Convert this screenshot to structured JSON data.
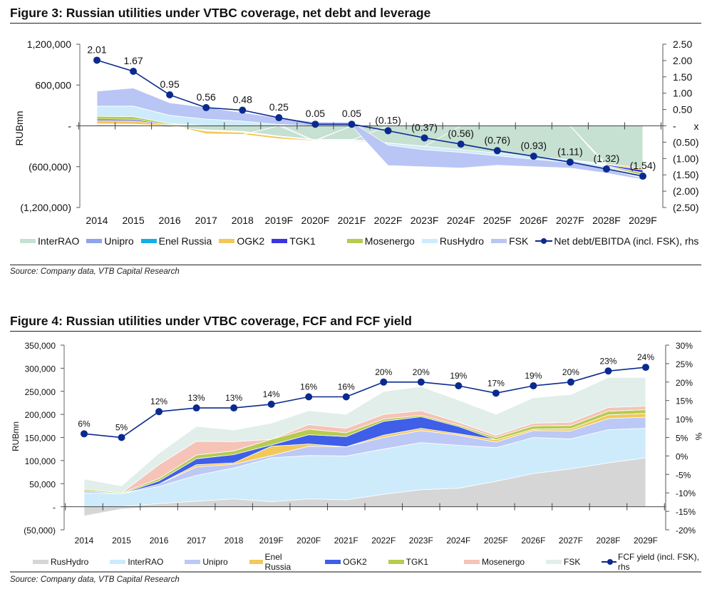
{
  "figures": [
    {
      "title": "Figure 3: Russian utilities under VTBC coverage, net debt and leverage",
      "source": "Source: Company data, VTB Capital Research"
    },
    {
      "title": "Figure 4: Russian utilities under VTBC coverage, FCF and FCF yield",
      "source": "Source: Company data, VTB Capital Research"
    }
  ],
  "chart_data": [
    {
      "type": "area",
      "stacked": true,
      "title": "Figure 3: Russian utilities under VTBC coverage, net debt and leverage",
      "xlabel": "",
      "ylabel": "RUBmn",
      "y2label": "x",
      "categories": [
        "2014",
        "2015",
        "2016",
        "2017",
        "2018",
        "2019F",
        "2020F",
        "2021F",
        "2022F",
        "2023F",
        "2024F",
        "2025F",
        "2026F",
        "2027F",
        "2028F",
        "2029F"
      ],
      "ylim": [
        -1200000,
        1200000
      ],
      "yticks": [
        1200000,
        600000,
        0,
        -600000,
        -1200000
      ],
      "ytick_labels": [
        "1,200,000",
        "600,000",
        "-",
        "(600,000)",
        "(1,200,000)"
      ],
      "y2lim": [
        -2.5,
        2.5
      ],
      "y2ticks": [
        2.5,
        2.0,
        1.5,
        1.0,
        0.5,
        0,
        -0.5,
        -1.0,
        -1.5,
        -2.0,
        -2.5
      ],
      "y2tick_labels": [
        "2.50",
        "2.00",
        "1.50",
        "1.00",
        "0.50",
        "-",
        "(0.50)",
        "(1.00)",
        "(1.50)",
        "(2.00)",
        "(2.50)"
      ],
      "grid": false,
      "legend_position": "bottom",
      "series": [
        {
          "name": "InterRAO",
          "color": "#c6e0d2",
          "values": [
            20000,
            15000,
            -20000,
            -60000,
            -80000,
            -150000,
            -200000,
            -200000,
            -250000,
            -300000,
            -350000,
            -400000,
            -450000,
            -500000,
            -560000,
            -620000
          ]
        },
        {
          "name": "Unipro",
          "color": "#8ea3ea",
          "values": [
            5000,
            5000,
            -5000,
            -8000,
            -8000,
            -5000,
            -5000,
            -5000,
            -3000,
            -2000,
            0,
            0,
            0,
            0,
            0,
            0
          ]
        },
        {
          "name": "Enel Russia",
          "color": "#10b0e8",
          "values": [
            5000,
            5000,
            -5000,
            -8000,
            -8000,
            -5000,
            -5000,
            -5000,
            0,
            0,
            0,
            0,
            0,
            0,
            0,
            0
          ]
        },
        {
          "name": "OGK2",
          "color": "#f2c85a",
          "values": [
            50000,
            50000,
            10000,
            -40000,
            -30000,
            -30000,
            -10000,
            0,
            0,
            0,
            0,
            0,
            0,
            0,
            -10000,
            -30000
          ]
        },
        {
          "name": "TGK1",
          "color": "#3a35e0",
          "values": [
            20000,
            20000,
            10000,
            -5000,
            -5000,
            0,
            0,
            0,
            0,
            0,
            0,
            0,
            0,
            0,
            -15000,
            -40000
          ]
        },
        {
          "name": "Mosenergo",
          "color": "#b5cc4f",
          "values": [
            40000,
            40000,
            15000,
            0,
            0,
            0,
            0,
            0,
            0,
            0,
            0,
            0,
            0,
            0,
            -10000,
            -40000
          ]
        },
        {
          "name": "RusHydro",
          "color": "#cdebfb",
          "values": [
            150000,
            155000,
            120000,
            100000,
            70000,
            20000,
            -10000,
            -10000,
            -30000,
            -50000,
            -40000,
            -40000,
            -40000,
            -40000,
            -40000,
            -40000
          ]
        },
        {
          "name": "FSK",
          "color": "#b9c5f4",
          "values": [
            220000,
            265000,
            185000,
            170000,
            125000,
            100000,
            60000,
            55000,
            -300000,
            -250000,
            -230000,
            -140000,
            -110000,
            -80000,
            -60000,
            -20000
          ]
        }
      ],
      "line_series": {
        "name": "Net debt/EBITDA (incl. FSK), rhs",
        "axis": "right",
        "color": "#0b2a8f",
        "values": [
          2.01,
          1.67,
          0.95,
          0.56,
          0.48,
          0.25,
          0.05,
          0.05,
          -0.15,
          -0.37,
          -0.56,
          -0.76,
          -0.93,
          -1.11,
          -1.32,
          -1.54
        ],
        "labels": [
          "2.01",
          "1.67",
          "0.95",
          "0.56",
          "0.48",
          "0.25",
          "0.05",
          "0.05",
          "(0.15)",
          "(0.37)",
          "(0.56)",
          "(0.76)",
          "(0.93)",
          "(1.11)",
          "(1.32)",
          "(1.54)"
        ]
      }
    },
    {
      "type": "area",
      "stacked": true,
      "title": "Figure 4: Russian utilities under VTBC coverage, FCF and FCF yield",
      "xlabel": "",
      "ylabel": "RUBmn",
      "y2label": "%",
      "categories": [
        "2014",
        "2015",
        "2016",
        "2017",
        "2018",
        "2019F",
        "2020F",
        "2021F",
        "2022F",
        "2023F",
        "2024F",
        "2025F",
        "2026F",
        "2027F",
        "2028F",
        "2029F"
      ],
      "ylim": [
        -50000,
        350000
      ],
      "yticks": [
        350000,
        300000,
        250000,
        200000,
        150000,
        100000,
        50000,
        0,
        -50000
      ],
      "ytick_labels": [
        "350,000",
        "300,000",
        "250,000",
        "200,000",
        "150,000",
        "100,000",
        "50,000",
        "-",
        "(50,000)"
      ],
      "y2lim": [
        -20,
        30
      ],
      "y2ticks": [
        30,
        25,
        20,
        15,
        10,
        5,
        0,
        -5,
        -10,
        -15,
        -20
      ],
      "y2tick_labels": [
        "30%",
        "25%",
        "20%",
        "15%",
        "10%",
        "5%",
        "0%",
        "-5%",
        "-10%",
        "-15%",
        "-20%"
      ],
      "grid": false,
      "legend_position": "bottom",
      "series": [
        {
          "name": "RusHydro",
          "color": "#d6d6d6",
          "values": [
            -20000,
            -5000,
            7000,
            12000,
            17000,
            11000,
            17000,
            15000,
            27000,
            37000,
            40000,
            55000,
            72000,
            82000,
            95000,
            106000
          ]
        },
        {
          "name": "InterRAO",
          "color": "#cdebfb",
          "values": [
            30000,
            28000,
            37000,
            56000,
            67000,
            95000,
            94000,
            95000,
            98000,
            102000,
            93000,
            73000,
            78000,
            65000,
            72000,
            64000
          ]
        },
        {
          "name": "Unipro",
          "color": "#bcc8f5",
          "values": [
            5000,
            0,
            5000,
            18000,
            8000,
            5000,
            20000,
            20000,
            25000,
            26000,
            22000,
            12000,
            15000,
            17000,
            24000,
            24000
          ]
        },
        {
          "name": "Enel Russia",
          "color": "#f2c85a",
          "values": [
            0,
            0,
            0,
            5000,
            3000,
            20000,
            5000,
            0,
            5000,
            5000,
            3000,
            5000,
            3000,
            5000,
            8000,
            8000
          ]
        },
        {
          "name": "OGK2",
          "color": "#3f5fe8",
          "values": [
            0,
            0,
            7000,
            13000,
            18000,
            3000,
            20000,
            22000,
            30000,
            25000,
            16000,
            0,
            0,
            0,
            0,
            0
          ]
        },
        {
          "name": "TGK1",
          "color": "#b5cc4f",
          "values": [
            3000,
            2000,
            5000,
            8000,
            8000,
            12000,
            12000,
            8000,
            5000,
            3000,
            3000,
            5000,
            7000,
            7000,
            8000,
            8000
          ]
        },
        {
          "name": "Mosenergo",
          "color": "#f5c3b8",
          "values": [
            0,
            0,
            30000,
            30000,
            20000,
            0,
            10000,
            10000,
            10000,
            10000,
            6000,
            5000,
            6000,
            7000,
            8000,
            8000
          ]
        },
        {
          "name": "FSK",
          "color": "#e1eee9",
          "values": [
            22000,
            15000,
            25000,
            32000,
            25000,
            35000,
            30000,
            30000,
            50000,
            52000,
            48000,
            45000,
            55000,
            60000,
            65000,
            62000
          ]
        }
      ],
      "line_series": {
        "name": "FCF yield (incl. FSK), rhs",
        "axis": "right",
        "color": "#0b2a8f",
        "values": [
          6,
          5,
          12,
          13,
          13,
          14,
          16,
          16,
          20,
          20,
          19,
          17,
          19,
          20,
          23,
          24
        ],
        "labels": [
          "6%",
          "5%",
          "12%",
          "13%",
          "13%",
          "14%",
          "16%",
          "16%",
          "20%",
          "20%",
          "19%",
          "17%",
          "19%",
          "20%",
          "23%",
          "24%"
        ]
      }
    }
  ]
}
